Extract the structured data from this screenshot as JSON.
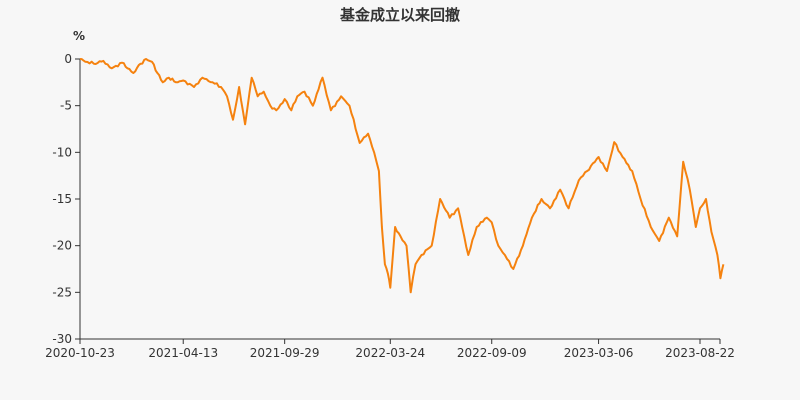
{
  "chart_data": {
    "type": "line",
    "title": "基金成立以来回撤",
    "ylabel": "%",
    "xlabel": "",
    "ylim": [
      -30,
      0
    ],
    "yticks": [
      "0",
      "-5",
      "-10",
      "-15",
      "-20",
      "-25",
      "-30"
    ],
    "ytick_values": [
      0,
      -5,
      -10,
      -15,
      -20,
      -25,
      -30
    ],
    "xticks": [
      "2020-10-23",
      "2021-04-13",
      "2021-09-29",
      "2022-03-24",
      "2022-09-09",
      "2023-03-06",
      "2023-08-22"
    ],
    "x_range": [
      "2020-10-23",
      "2023-09-30"
    ],
    "grid": false,
    "legend": "none",
    "line_color": "#f5820f",
    "series": [
      {
        "x": [
          "2020-10-23",
          "2020-11-01",
          "2020-11-15",
          "2020-12-01",
          "2020-12-15",
          "2021-01-01",
          "2021-01-10",
          "2021-01-20",
          "2021-02-01",
          "2021-02-10",
          "2021-02-20",
          "2021-03-01",
          "2021-03-10",
          "2021-03-20",
          "2021-04-01",
          "2021-04-13",
          "2021-05-01",
          "2021-05-15",
          "2021-06-01",
          "2021-06-15",
          "2021-06-25",
          "2021-07-05",
          "2021-07-15",
          "2021-07-25",
          "2021-08-05",
          "2021-08-15",
          "2021-08-25",
          "2021-09-05",
          "2021-09-15",
          "2021-09-29",
          "2021-10-10",
          "2021-10-20",
          "2021-11-01",
          "2021-11-15",
          "2021-12-01",
          "2021-12-15",
          "2022-01-01",
          "2022-01-15",
          "2022-02-01",
          "2022-02-15",
          "2022-02-25",
          "2022-03-05",
          "2022-03-10",
          "2022-03-15",
          "2022-03-20",
          "2022-03-24",
          "2022-04-01",
          "2022-04-10",
          "2022-04-20",
          "2022-04-27",
          "2022-05-05",
          "2022-05-15",
          "2022-06-01",
          "2022-06-15",
          "2022-07-01",
          "2022-07-15",
          "2022-08-01",
          "2022-08-15",
          "2022-09-01",
          "2022-09-09",
          "2022-09-20",
          "2022-10-01",
          "2022-10-15",
          "2022-10-31",
          "2022-11-15",
          "2022-12-01",
          "2022-12-15",
          "2023-01-01",
          "2023-01-15",
          "2023-02-01",
          "2023-02-15",
          "2023-03-06",
          "2023-03-20",
          "2023-04-01",
          "2023-04-15",
          "2023-05-01",
          "2023-05-15",
          "2023-06-01",
          "2023-06-15",
          "2023-07-01",
          "2023-07-15",
          "2023-07-25",
          "2023-08-05",
          "2023-08-15",
          "2023-08-22",
          "2023-09-01",
          "2023-09-10",
          "2023-09-20",
          "2023-09-25",
          "2023-09-30"
        ],
        "values": [
          0,
          -0.3,
          -0.5,
          -0.2,
          -1,
          -0.4,
          -1,
          -1.5,
          -0.5,
          0,
          -0.3,
          -1.5,
          -2.5,
          -2,
          -2.5,
          -2.3,
          -3,
          -2,
          -2.5,
          -3,
          -4,
          -6.5,
          -3,
          -7,
          -2,
          -4,
          -3.5,
          -5,
          -5.5,
          -4.3,
          -5.5,
          -4,
          -3.5,
          -5,
          -2,
          -5.5,
          -4,
          -5,
          -9,
          -8,
          -10,
          -12,
          -18,
          -22,
          -23,
          -24.5,
          -18,
          -19,
          -20,
          -25,
          -22,
          -21,
          -20,
          -15,
          -17,
          -16,
          -21,
          -18,
          -17,
          -17.5,
          -20,
          -21,
          -22.5,
          -20,
          -17,
          -15,
          -16,
          -14,
          -16,
          -13,
          -12,
          -10.5,
          -12,
          -8.9,
          -10.5,
          -12,
          -15,
          -18,
          -19.5,
          -17,
          -19,
          -11,
          -14,
          -18,
          -16,
          -15,
          -18.5,
          -21,
          -23.5,
          -22
        ]
      }
    ]
  }
}
